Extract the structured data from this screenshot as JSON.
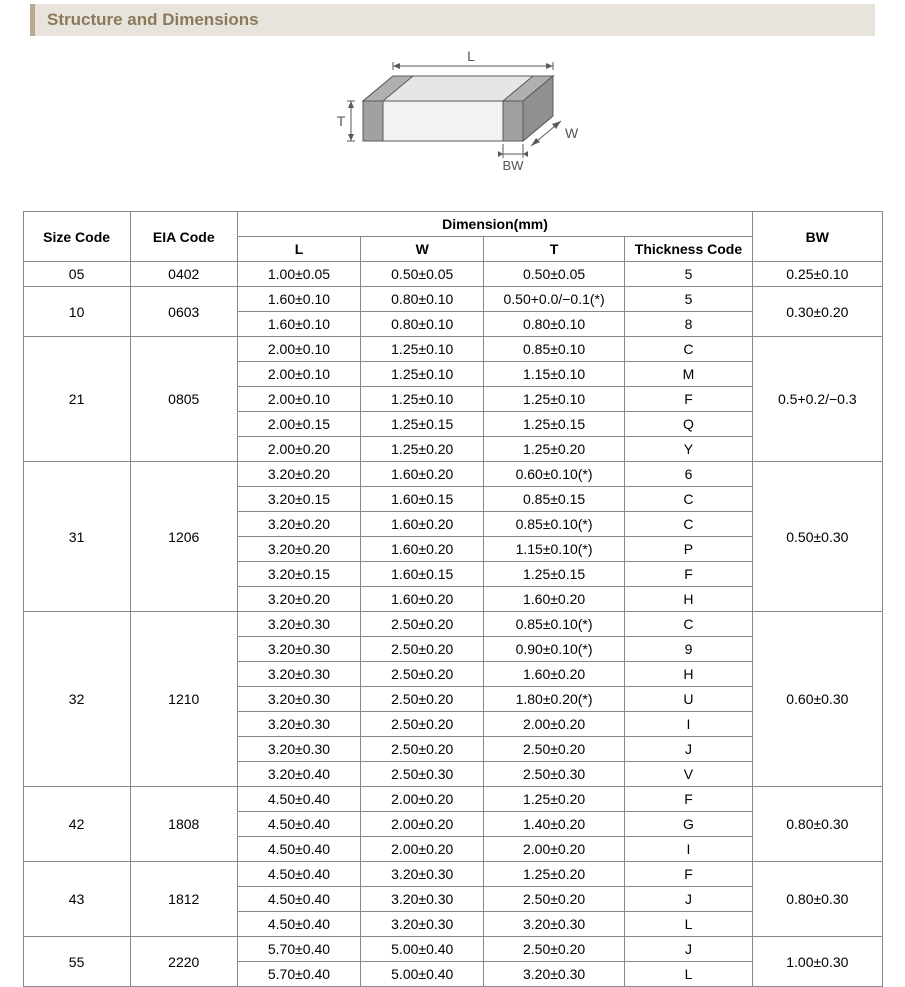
{
  "header": {
    "title": "Structure and Dimensions"
  },
  "diagram": {
    "labels": {
      "L": "L",
      "W": "W",
      "T": "T",
      "BW": "BW"
    },
    "stroke": "#5a5a5a",
    "fill_top": "#e6e6e6",
    "fill_side": "#d0d0d0",
    "fill_front": "#f2f2f2",
    "terminal_fill": "#a8a8a8",
    "font_size": 14,
    "font_color": "#555555"
  },
  "table": {
    "header": {
      "size_code": "Size Code",
      "eia_code": "EIA Code",
      "dimension": "Dimension(mm)",
      "L": "L",
      "W": "W",
      "T": "T",
      "thickness_code": "Thickness Code",
      "BW": "BW"
    },
    "groups": [
      {
        "size_code": "05",
        "eia_code": "0402",
        "bw": "0.25±0.10",
        "rows": [
          {
            "L": "1.00±0.05",
            "W": "0.50±0.05",
            "T": "0.50±0.05",
            "TC": "5"
          }
        ]
      },
      {
        "size_code": "10",
        "eia_code": "0603",
        "bw": "0.30±0.20",
        "rows": [
          {
            "L": "1.60±0.10",
            "W": "0.80±0.10",
            "T": "0.50+0.0/−0.1(*)",
            "TC": "5"
          },
          {
            "L": "1.60±0.10",
            "W": "0.80±0.10",
            "T": "0.80±0.10",
            "TC": "8"
          }
        ]
      },
      {
        "size_code": "21",
        "eia_code": "0805",
        "bw": "0.5+0.2/−0.3",
        "rows": [
          {
            "L": "2.00±0.10",
            "W": "1.25±0.10",
            "T": "0.85±0.10",
            "TC": "C"
          },
          {
            "L": "2.00±0.10",
            "W": "1.25±0.10",
            "T": "1.15±0.10",
            "TC": "M"
          },
          {
            "L": "2.00±0.10",
            "W": "1.25±0.10",
            "T": "1.25±0.10",
            "TC": "F"
          },
          {
            "L": "2.00±0.15",
            "W": "1.25±0.15",
            "T": "1.25±0.15",
            "TC": "Q"
          },
          {
            "L": "2.00±0.20",
            "W": "1.25±0.20",
            "T": "1.25±0.20",
            "TC": "Y"
          }
        ]
      },
      {
        "size_code": "31",
        "eia_code": "1206",
        "bw": "0.50±0.30",
        "rows": [
          {
            "L": "3.20±0.20",
            "W": "1.60±0.20",
            "T": "0.60±0.10(*)",
            "TC": "6"
          },
          {
            "L": "3.20±0.15",
            "W": "1.60±0.15",
            "T": "0.85±0.15",
            "TC": "C"
          },
          {
            "L": "3.20±0.20",
            "W": "1.60±0.20",
            "T": "0.85±0.10(*)",
            "TC": "C"
          },
          {
            "L": "3.20±0.20",
            "W": "1.60±0.20",
            "T": "1.15±0.10(*)",
            "TC": "P"
          },
          {
            "L": "3.20±0.15",
            "W": "1.60±0.15",
            "T": "1.25±0.15",
            "TC": "F"
          },
          {
            "L": "3.20±0.20",
            "W": "1.60±0.20",
            "T": "1.60±0.20",
            "TC": "H"
          }
        ]
      },
      {
        "size_code": "32",
        "eia_code": "1210",
        "bw": "0.60±0.30",
        "rows": [
          {
            "L": "3.20±0.30",
            "W": "2.50±0.20",
            "T": "0.85±0.10(*)",
            "TC": "C"
          },
          {
            "L": "3.20±0.30",
            "W": "2.50±0.20",
            "T": "0.90±0.10(*)",
            "TC": "9"
          },
          {
            "L": "3.20±0.30",
            "W": "2.50±0.20",
            "T": "1.60±0.20",
            "TC": "H"
          },
          {
            "L": "3.20±0.30",
            "W": "2.50±0.20",
            "T": "1.80±0.20(*)",
            "TC": "U"
          },
          {
            "L": "3.20±0.30",
            "W": "2.50±0.20",
            "T": "2.00±0.20",
            "TC": "I"
          },
          {
            "L": "3.20±0.30",
            "W": "2.50±0.20",
            "T": "2.50±0.20",
            "TC": "J"
          },
          {
            "L": "3.20±0.40",
            "W": "2.50±0.30",
            "T": "2.50±0.30",
            "TC": "V"
          }
        ]
      },
      {
        "size_code": "42",
        "eia_code": "1808",
        "bw": "0.80±0.30",
        "rows": [
          {
            "L": "4.50±0.40",
            "W": "2.00±0.20",
            "T": "1.25±0.20",
            "TC": "F"
          },
          {
            "L": "4.50±0.40",
            "W": "2.00±0.20",
            "T": "1.40±0.20",
            "TC": "G"
          },
          {
            "L": "4.50±0.40",
            "W": "2.00±0.20",
            "T": "2.00±0.20",
            "TC": "I"
          }
        ]
      },
      {
        "size_code": "43",
        "eia_code": "1812",
        "bw": "0.80±0.30",
        "rows": [
          {
            "L": "4.50±0.40",
            "W": "3.20±0.30",
            "T": "1.25±0.20",
            "TC": "F"
          },
          {
            "L": "4.50±0.40",
            "W": "3.20±0.30",
            "T": "2.50±0.20",
            "TC": "J"
          },
          {
            "L": "4.50±0.40",
            "W": "3.20±0.30",
            "T": "3.20±0.30",
            "TC": "L"
          }
        ]
      },
      {
        "size_code": "55",
        "eia_code": "2220",
        "bw": "1.00±0.30",
        "rows": [
          {
            "L": "5.70±0.40",
            "W": "5.00±0.40",
            "T": "2.50±0.20",
            "TC": "J"
          },
          {
            "L": "5.70±0.40",
            "W": "5.00±0.40",
            "T": "3.20±0.30",
            "TC": "L"
          }
        ]
      }
    ]
  },
  "styles": {
    "header_bg": "#e8e4dd",
    "header_border": "#b8a98f",
    "header_text": "#8a7a5c",
    "table_border": "#888888",
    "cell_bg": "#ffffff",
    "font_size_header": 17,
    "font_size_table": 14
  }
}
